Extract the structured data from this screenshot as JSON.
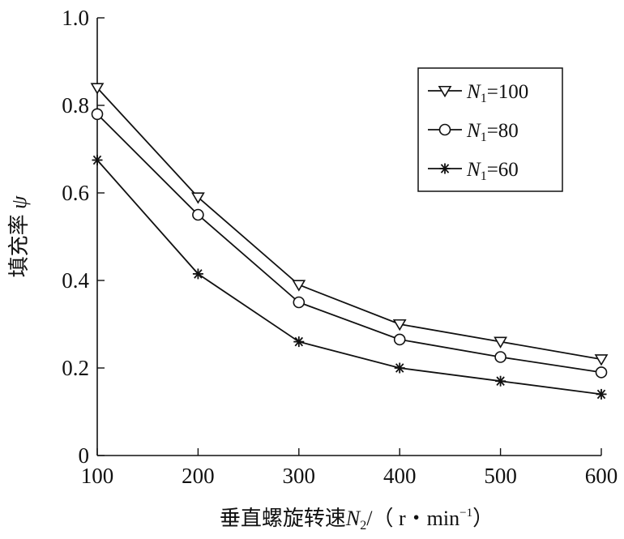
{
  "chart_data": {
    "type": "line",
    "x": [
      100,
      200,
      300,
      400,
      500,
      600
    ],
    "xlim": [
      100,
      600
    ],
    "ylim": [
      0,
      1.0
    ],
    "xticks": [
      "100",
      "200",
      "300",
      "400",
      "500",
      "600"
    ],
    "yticks": [
      "0",
      "0.2",
      "0.4",
      "0.6",
      "0.8",
      "1.0"
    ],
    "xlabel": {
      "text": "垂直螺旋转速",
      "var": "N",
      "sub": "2",
      "unit_open": "/（ r・min",
      "sup": "−1",
      "unit_close": "）"
    },
    "ylabel": {
      "text": "填充率",
      "var": "ψ"
    },
    "grid": false,
    "legend_position": "top-right",
    "series": [
      {
        "name": "N1=100",
        "label_var": "N",
        "label_sub": "1",
        "label_val": "=100",
        "marker": "triangle-down",
        "values": [
          0.84,
          0.59,
          0.39,
          0.3,
          0.26,
          0.22
        ]
      },
      {
        "name": "N1=80",
        "label_var": "N",
        "label_sub": "1",
        "label_val": "=80",
        "marker": "circle",
        "values": [
          0.78,
          0.55,
          0.35,
          0.265,
          0.225,
          0.19
        ]
      },
      {
        "name": "N1=60",
        "label_var": "N",
        "label_sub": "1",
        "label_val": "=60",
        "marker": "asterisk",
        "values": [
          0.675,
          0.415,
          0.26,
          0.2,
          0.17,
          0.14
        ]
      }
    ]
  }
}
